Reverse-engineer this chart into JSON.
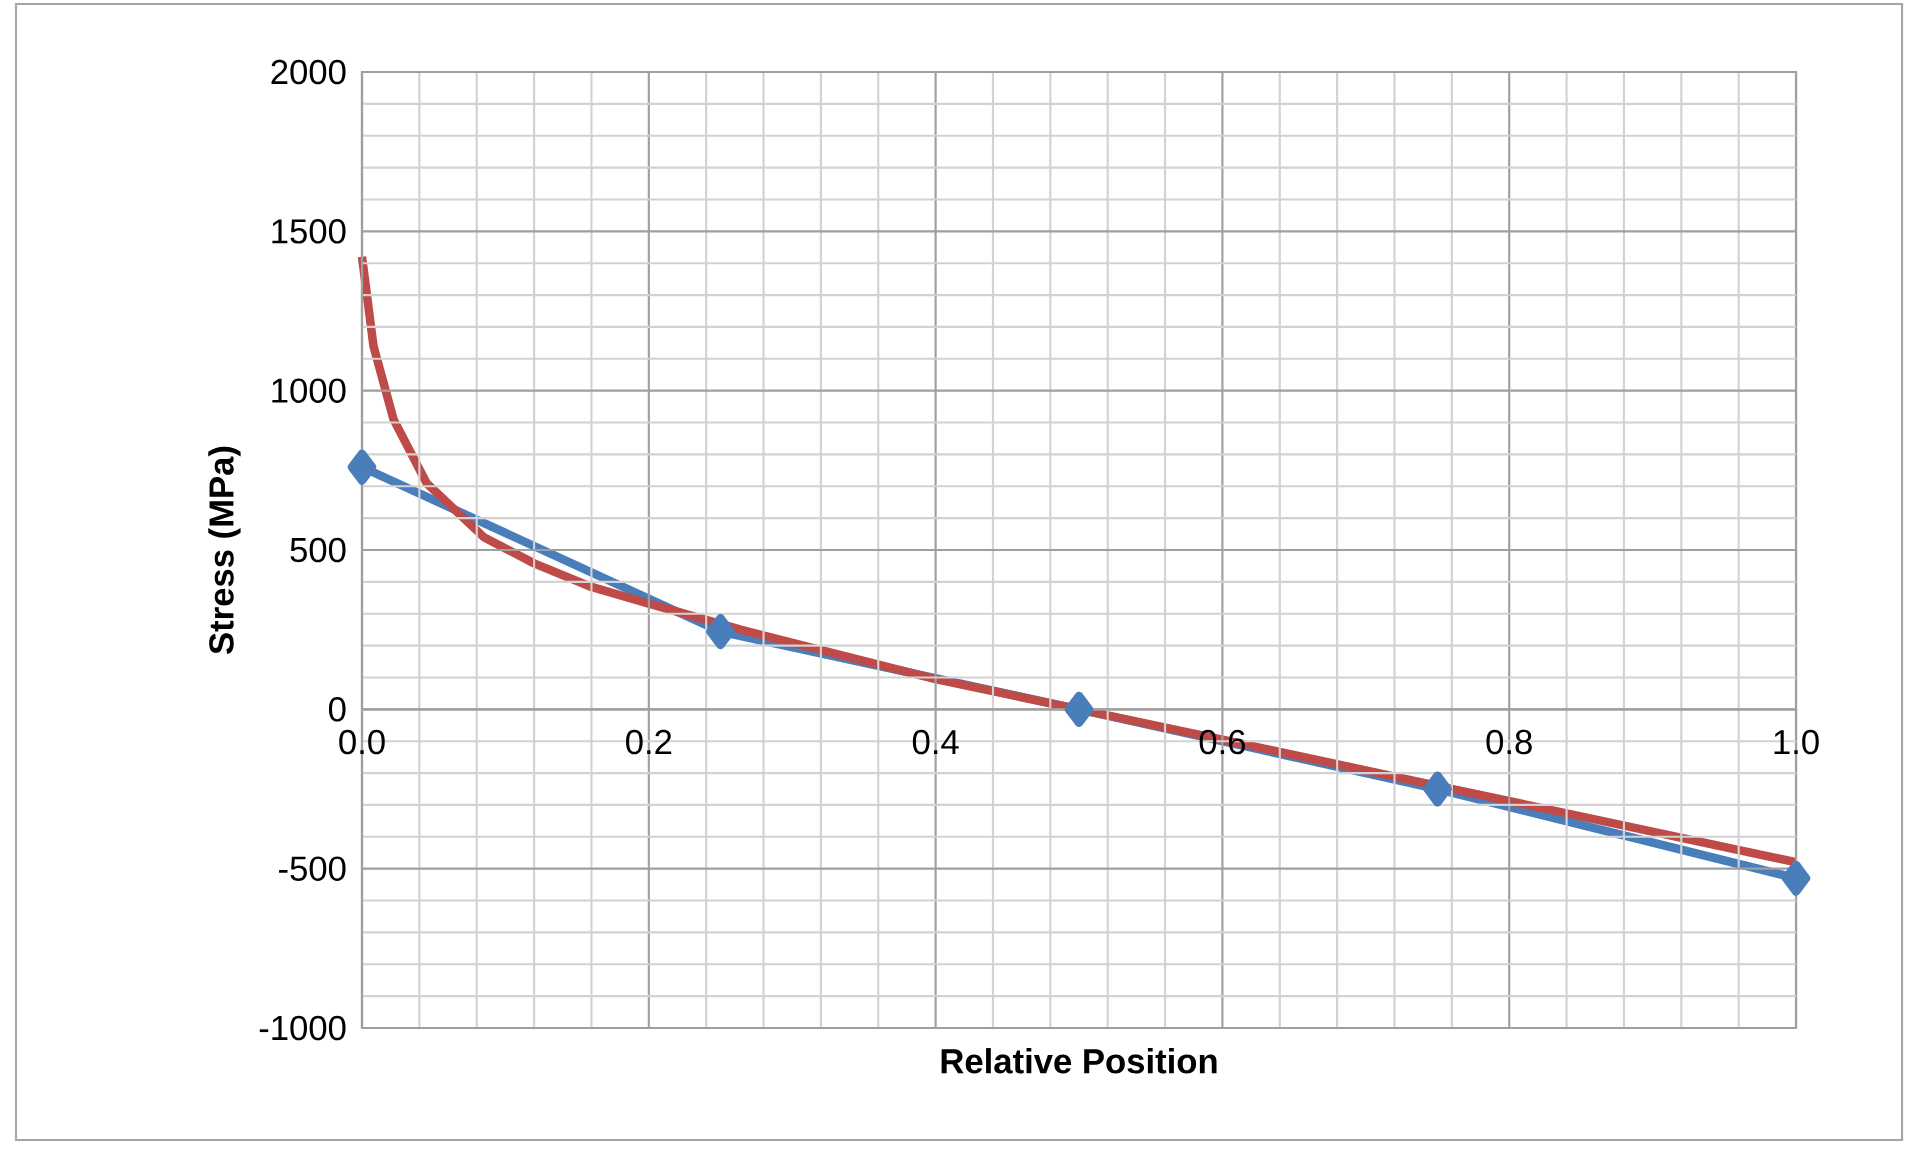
{
  "chart_data": {
    "type": "line",
    "xlabel": "Relative Position",
    "ylabel": "Stress (MPa)",
    "xlim": [
      0,
      1
    ],
    "ylim": [
      -1000,
      2000
    ],
    "xticks": [
      {
        "value": 0,
        "label": "0.0"
      },
      0.2,
      0.4,
      0.6,
      0.8,
      {
        "value": 1,
        "label": "1.0"
      }
    ],
    "yticks": [
      -1000,
      -500,
      0,
      500,
      1000,
      1500,
      2000
    ],
    "grid": true,
    "series": [
      {
        "color": "#4a7ebb",
        "marker": "diamond",
        "x": [
          0,
          0.25,
          0.5,
          0.75,
          1.0
        ],
        "values": [
          760,
          244,
          0,
          -250,
          -530
        ]
      },
      {
        "color": "#be4b48",
        "marker": "none",
        "x": [
          0,
          0.008,
          0.022,
          0.045,
          0.085,
          0.12,
          0.16,
          0.2,
          0.264,
          0.4,
          0.5,
          0.6,
          0.75,
          1.0
        ],
        "values": [
          1420,
          1140,
          910,
          710,
          540,
          458,
          384,
          332,
          250,
          95,
          0,
          -95,
          -240,
          -480
        ]
      }
    ]
  }
}
